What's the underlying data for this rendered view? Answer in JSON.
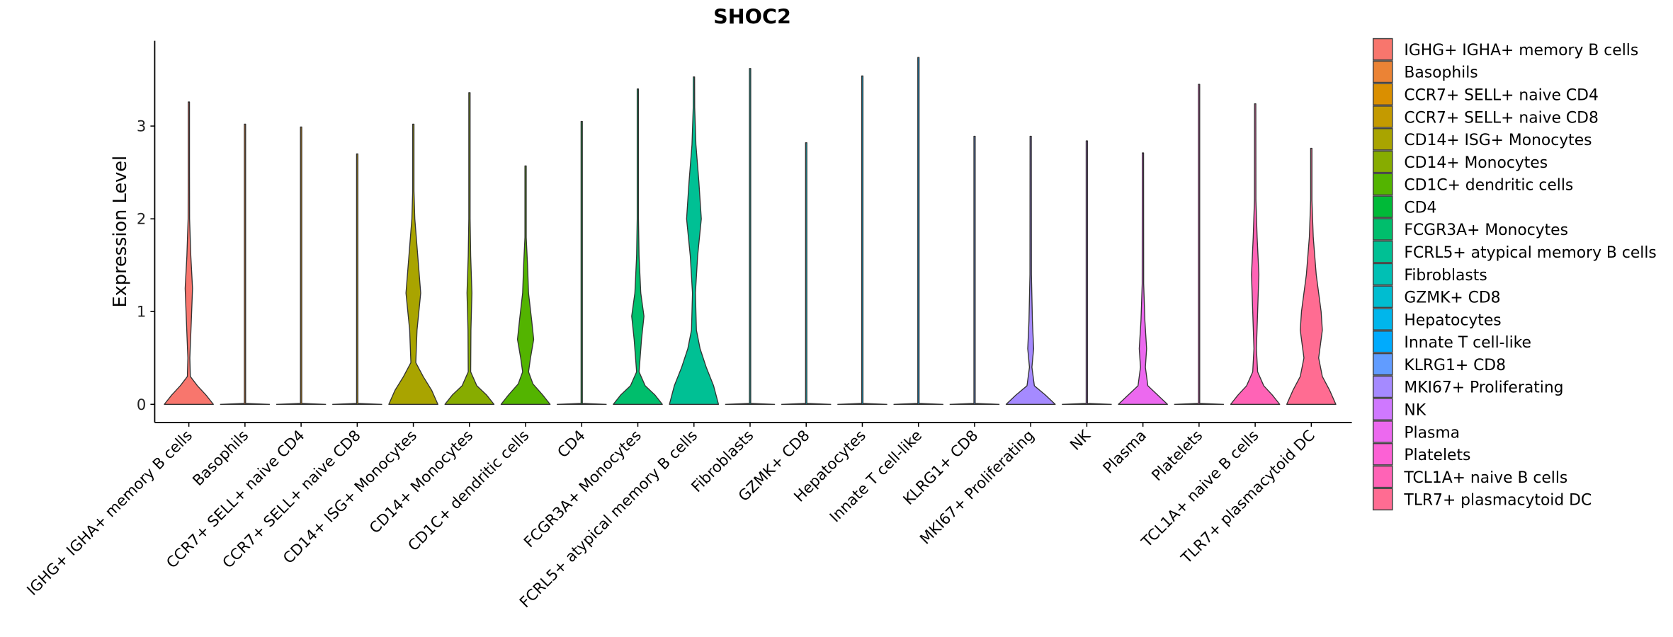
{
  "chart_data": {
    "type": "violin",
    "title": "SHOC2",
    "xlabel": "",
    "ylabel": "Expression Level",
    "ylim": [
      -0.18,
      3.9
    ],
    "yticks": [
      "0",
      "1",
      "2",
      "3"
    ],
    "ytick_values": [
      0,
      1,
      2,
      3
    ],
    "legend_placement": "right",
    "grid": false,
    "categories": [
      {
        "name": "IGHG+ IGHA+ memory B cells",
        "legend": " IGHG+ IGHA+ memory B cells",
        "color": "#F8766D",
        "max": 3.26,
        "profile": [
          [
            0,
            1
          ],
          [
            0.1,
            0.7
          ],
          [
            0.2,
            0.35
          ],
          [
            0.3,
            0.06
          ],
          [
            0.5,
            0.04
          ],
          [
            0.9,
            0.1
          ],
          [
            1.25,
            0.15
          ],
          [
            1.6,
            0.08
          ],
          [
            2,
            0.03
          ],
          [
            2.5,
            0.01
          ],
          [
            3.26,
            0
          ]
        ]
      },
      {
        "name": "Basophils",
        "legend": "Basophils",
        "color": "#EB8335",
        "max": 3.02,
        "profile": [
          [
            0,
            1
          ],
          [
            0.01,
            0
          ]
        ]
      },
      {
        "name": "CCR7+ SELL+ naive CD4",
        "legend": "CCR7+ SELL+ naive CD4",
        "color": "#DA8F00",
        "max": 2.99,
        "profile": [
          [
            0,
            1
          ],
          [
            0.01,
            0
          ]
        ]
      },
      {
        "name": "CCR7+ SELL+ naive CD8",
        "legend": "CCR7+ SELL+ naive CD8",
        "color": "#C49A00",
        "max": 2.7,
        "profile": [
          [
            0,
            1
          ],
          [
            0.01,
            0
          ]
        ]
      },
      {
        "name": "CD14+ ISG+ Monocytes",
        "legend": "CD14+ ISG+ Monocytes",
        "color": "#A9A400",
        "max": 3.02,
        "profile": [
          [
            0,
            1
          ],
          [
            0.15,
            0.75
          ],
          [
            0.3,
            0.4
          ],
          [
            0.45,
            0.1
          ],
          [
            0.8,
            0.15
          ],
          [
            1.2,
            0.3
          ],
          [
            1.6,
            0.18
          ],
          [
            2,
            0.06
          ],
          [
            2.3,
            0.02
          ],
          [
            3.02,
            0
          ]
        ]
      },
      {
        "name": "CD14+ Monocytes",
        "legend": "CD14+ Monocytes",
        "color": "#87AC00",
        "max": 3.36,
        "profile": [
          [
            0,
            1
          ],
          [
            0.1,
            0.7
          ],
          [
            0.2,
            0.3
          ],
          [
            0.35,
            0.05
          ],
          [
            0.8,
            0.06
          ],
          [
            1.2,
            0.1
          ],
          [
            1.6,
            0.05
          ],
          [
            2,
            0.02
          ],
          [
            3.36,
            0
          ]
        ]
      },
      {
        "name": "CD1C+ dendritic cells",
        "legend": "CD1C+ dendritic cells",
        "color": "#53B400",
        "max": 2.57,
        "profile": [
          [
            0,
            1
          ],
          [
            0.1,
            0.7
          ],
          [
            0.22,
            0.3
          ],
          [
            0.35,
            0.12
          ],
          [
            0.5,
            0.2
          ],
          [
            0.7,
            0.33
          ],
          [
            0.9,
            0.25
          ],
          [
            1.2,
            0.12
          ],
          [
            1.5,
            0.08
          ],
          [
            1.8,
            0.02
          ],
          [
            2.57,
            0
          ]
        ]
      },
      {
        "name": "CD4",
        "legend": "CD4",
        "color": "#00BA38",
        "max": 3.05,
        "profile": [
          [
            0,
            1
          ],
          [
            0.01,
            0
          ]
        ]
      },
      {
        "name": "FCGR3A+ Monocytes",
        "legend": "FCGR3A+ Monocytes",
        "color": "#00BE6C",
        "max": 3.4,
        "profile": [
          [
            0,
            1
          ],
          [
            0.1,
            0.7
          ],
          [
            0.2,
            0.3
          ],
          [
            0.35,
            0.05
          ],
          [
            0.7,
            0.15
          ],
          [
            0.95,
            0.25
          ],
          [
            1.2,
            0.12
          ],
          [
            1.6,
            0.05
          ],
          [
            2,
            0.02
          ],
          [
            3.4,
            0
          ]
        ]
      },
      {
        "name": "FCRL5+ atypical memory B cells",
        "legend": "FCRL5+ atypical memory B cells",
        "color": "#00C094",
        "max": 3.53,
        "profile": [
          [
            0,
            1
          ],
          [
            0.2,
            0.8
          ],
          [
            0.4,
            0.5
          ],
          [
            0.6,
            0.25
          ],
          [
            0.8,
            0.1
          ],
          [
            1.2,
            0.06
          ],
          [
            1.6,
            0.15
          ],
          [
            2,
            0.3
          ],
          [
            2.4,
            0.2
          ],
          [
            2.8,
            0.08
          ],
          [
            3.2,
            0.03
          ],
          [
            3.53,
            0
          ]
        ]
      },
      {
        "name": "Fibroblasts",
        "legend": "Fibroblasts",
        "color": "#00C0B4",
        "max": 3.62,
        "profile": [
          [
            0,
            1
          ],
          [
            0.01,
            0
          ]
        ]
      },
      {
        "name": "GZMK+ CD8",
        "legend": "GZMK+ CD8",
        "color": "#00BDD0",
        "max": 2.82,
        "profile": [
          [
            0,
            1
          ],
          [
            0.01,
            0
          ]
        ]
      },
      {
        "name": "Hepatocytes",
        "legend": "Hepatocytes",
        "color": "#00B6EB",
        "max": 3.54,
        "profile": [
          [
            0,
            1
          ],
          [
            0.01,
            0
          ]
        ]
      },
      {
        "name": "Innate T cell-like",
        "legend": "Innate T cell-like",
        "color": "#00ABFD",
        "max": 3.74,
        "profile": [
          [
            0,
            1
          ],
          [
            0.01,
            0
          ]
        ]
      },
      {
        "name": "KLRG1+ CD8",
        "legend": "KLRG1+ CD8",
        "color": "#619CFF",
        "max": 2.89,
        "profile": [
          [
            0,
            1
          ],
          [
            0.01,
            0
          ]
        ]
      },
      {
        "name": "MKI67+ Proliferating",
        "legend": "MKI67+ Proliferating",
        "color": "#A58AFF",
        "max": 2.89,
        "profile": [
          [
            0,
            1
          ],
          [
            0.1,
            0.6
          ],
          [
            0.2,
            0.15
          ],
          [
            0.4,
            0.05
          ],
          [
            0.6,
            0.12
          ],
          [
            0.9,
            0.07
          ],
          [
            1.4,
            0.03
          ],
          [
            2.89,
            0
          ]
        ]
      },
      {
        "name": "NK",
        "legend": "NK",
        "color": "#CF78FF",
        "max": 2.84,
        "profile": [
          [
            0,
            1
          ],
          [
            0.01,
            0
          ]
        ]
      },
      {
        "name": "Plasma",
        "legend": "Plasma",
        "color": "#EC69EF",
        "max": 2.71,
        "profile": [
          [
            0,
            1
          ],
          [
            0.1,
            0.6
          ],
          [
            0.2,
            0.2
          ],
          [
            0.4,
            0.1
          ],
          [
            0.6,
            0.15
          ],
          [
            0.9,
            0.08
          ],
          [
            1.3,
            0.03
          ],
          [
            2.71,
            0
          ]
        ]
      },
      {
        "name": "Platelets",
        "legend": "Platelets",
        "color": "#FC61D5",
        "max": 3.45,
        "profile": [
          [
            0,
            1
          ],
          [
            0.01,
            0
          ]
        ]
      },
      {
        "name": "TCL1A+ naive B cells",
        "legend": "TCL1A+ naive B cells",
        "color": "#FF63B6",
        "max": 3.24,
        "profile": [
          [
            0,
            1
          ],
          [
            0.1,
            0.7
          ],
          [
            0.2,
            0.35
          ],
          [
            0.35,
            0.1
          ],
          [
            0.6,
            0.05
          ],
          [
            1,
            0.1
          ],
          [
            1.4,
            0.15
          ],
          [
            1.8,
            0.08
          ],
          [
            2.2,
            0.03
          ],
          [
            3.24,
            0
          ]
        ]
      },
      {
        "name": "TLR7+ plasmacytoid DC",
        "legend": "TLR7+ plasmacytoid DC",
        "color": "#FF6C92",
        "max": 2.76,
        "profile": [
          [
            0,
            1
          ],
          [
            0.15,
            0.75
          ],
          [
            0.3,
            0.45
          ],
          [
            0.5,
            0.3
          ],
          [
            0.8,
            0.45
          ],
          [
            1,
            0.4
          ],
          [
            1.4,
            0.2
          ],
          [
            1.8,
            0.08
          ],
          [
            2.2,
            0.02
          ],
          [
            2.76,
            0
          ]
        ]
      }
    ]
  }
}
